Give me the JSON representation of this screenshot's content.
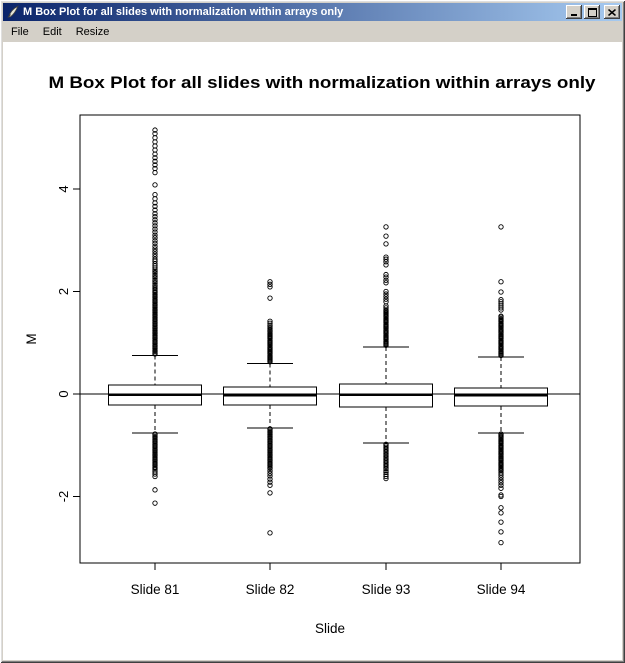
{
  "window": {
    "title": "M Box Plot for all slides with normalization within arrays only",
    "icons": {
      "titlebar": "quill-icon",
      "minimize": "minimize-icon",
      "maximize": "maximize-icon",
      "close": "close-icon"
    },
    "menu": [
      "File",
      "Edit",
      "Resize"
    ]
  },
  "colors": {
    "titlebar_gradient_left": "#0a246a",
    "titlebar_gradient_right": "#a6caf0",
    "window_chrome": "#d4d0c8",
    "plot_foreground": "#000000",
    "plot_background": "#ffffff"
  },
  "chart_data": {
    "type": "boxplot",
    "title": "M Box Plot for all slides with normalization within arrays only",
    "xlabel": "Slide",
    "ylabel": "M",
    "ylim": [
      -3.3,
      5.45
    ],
    "yticks": [
      -2,
      0,
      2,
      4
    ],
    "reference_line_y": 0,
    "grid": false,
    "legend": false,
    "categories": [
      "Slide 81",
      "Slide 82",
      "Slide 93",
      "Slide 94"
    ],
    "series": [
      {
        "name": "Slide 81",
        "q1": -0.21,
        "median": -0.02,
        "q3": 0.18,
        "whisker_low": -0.76,
        "whisker_high": 0.75,
        "outliers_high": [
          0.78,
          0.8,
          0.83,
          0.85,
          0.88,
          0.9,
          0.93,
          0.95,
          0.98,
          1.0,
          1.03,
          1.05,
          1.08,
          1.1,
          1.13,
          1.15,
          1.18,
          1.2,
          1.23,
          1.25,
          1.28,
          1.3,
          1.33,
          1.35,
          1.38,
          1.4,
          1.43,
          1.45,
          1.48,
          1.5,
          1.53,
          1.55,
          1.58,
          1.6,
          1.63,
          1.65,
          1.68,
          1.7,
          1.73,
          1.75,
          1.78,
          1.8,
          1.83,
          1.85,
          1.88,
          1.9,
          1.93,
          1.95,
          1.98,
          2.0,
          2.03,
          2.06,
          2.09,
          2.12,
          2.16,
          2.19,
          2.22,
          2.26,
          2.29,
          2.32,
          2.36,
          2.39,
          2.42,
          2.46,
          2.5,
          2.54,
          2.59,
          2.63,
          2.68,
          2.73,
          2.78,
          2.83,
          2.88,
          2.94,
          2.99,
          3.05,
          3.1,
          3.16,
          3.22,
          3.28,
          3.34,
          3.4,
          3.46,
          3.52,
          3.59,
          3.66,
          3.73,
          3.81,
          3.89,
          4.08,
          4.32,
          4.4,
          4.47,
          4.54,
          4.61,
          4.68,
          4.76,
          4.84,
          4.92,
          5.0,
          5.08,
          5.15
        ],
        "outliers_low": [
          -0.78,
          -0.8,
          -0.83,
          -0.85,
          -0.88,
          -0.9,
          -0.93,
          -0.95,
          -0.98,
          -1.0,
          -1.03,
          -1.05,
          -1.08,
          -1.1,
          -1.13,
          -1.15,
          -1.18,
          -1.2,
          -1.23,
          -1.25,
          -1.28,
          -1.3,
          -1.33,
          -1.35,
          -1.38,
          -1.4,
          -1.43,
          -1.45,
          -1.48,
          -1.52,
          -1.56,
          -1.61,
          -1.87,
          -2.13
        ]
      },
      {
        "name": "Slide 82",
        "q1": -0.21,
        "median": -0.03,
        "q3": 0.14,
        "whisker_low": -0.66,
        "whisker_high": 0.6,
        "outliers_high": [
          0.63,
          0.65,
          0.67,
          0.69,
          0.71,
          0.73,
          0.75,
          0.78,
          0.8,
          0.82,
          0.84,
          0.86,
          0.88,
          0.9,
          0.92,
          0.95,
          0.97,
          0.99,
          1.01,
          1.03,
          1.05,
          1.08,
          1.1,
          1.12,
          1.14,
          1.16,
          1.18,
          1.21,
          1.23,
          1.25,
          1.28,
          1.31,
          1.34,
          1.38,
          1.42,
          1.87,
          2.09,
          2.14,
          2.19
        ],
        "outliers_low": [
          -0.68,
          -0.7,
          -0.73,
          -0.75,
          -0.78,
          -0.8,
          -0.83,
          -0.85,
          -0.88,
          -0.9,
          -0.93,
          -0.95,
          -0.98,
          -1.0,
          -1.03,
          -1.05,
          -1.08,
          -1.1,
          -1.13,
          -1.15,
          -1.18,
          -1.2,
          -1.23,
          -1.25,
          -1.28,
          -1.3,
          -1.33,
          -1.35,
          -1.38,
          -1.4,
          -1.43,
          -1.45,
          -1.5,
          -1.55,
          -1.6,
          -1.66,
          -1.72,
          -1.78,
          -1.93,
          -2.71
        ]
      },
      {
        "name": "Slide 93",
        "q1": -0.25,
        "median": -0.02,
        "q3": 0.2,
        "whisker_low": -0.96,
        "whisker_high": 0.92,
        "outliers_high": [
          0.95,
          0.97,
          0.99,
          1.01,
          1.03,
          1.06,
          1.08,
          1.1,
          1.12,
          1.14,
          1.17,
          1.19,
          1.21,
          1.23,
          1.25,
          1.28,
          1.3,
          1.32,
          1.34,
          1.36,
          1.39,
          1.41,
          1.43,
          1.45,
          1.47,
          1.5,
          1.52,
          1.54,
          1.56,
          1.58,
          1.6,
          1.62,
          1.64,
          1.68,
          1.72,
          1.8,
          1.85,
          1.9,
          1.95,
          2.0,
          2.17,
          2.22,
          2.28,
          2.33,
          2.52,
          2.58,
          2.63,
          2.67,
          2.93,
          3.08,
          3.26
        ],
        "outliers_low": [
          -0.98,
          -1.01,
          -1.04,
          -1.07,
          -1.1,
          -1.13,
          -1.16,
          -1.19,
          -1.22,
          -1.25,
          -1.28,
          -1.31,
          -1.34,
          -1.37,
          -1.4,
          -1.43,
          -1.46,
          -1.5,
          -1.53,
          -1.57,
          -1.61,
          -1.65
        ]
      },
      {
        "name": "Slide 94",
        "q1": -0.23,
        "median": -0.03,
        "q3": 0.12,
        "whisker_low": -0.76,
        "whisker_high": 0.72,
        "outliers_high": [
          0.75,
          0.77,
          0.79,
          0.81,
          0.83,
          0.86,
          0.88,
          0.9,
          0.92,
          0.94,
          0.97,
          0.99,
          1.01,
          1.03,
          1.05,
          1.08,
          1.1,
          1.12,
          1.14,
          1.16,
          1.19,
          1.21,
          1.23,
          1.25,
          1.27,
          1.3,
          1.32,
          1.34,
          1.36,
          1.38,
          1.41,
          1.43,
          1.45,
          1.47,
          1.5,
          1.52,
          1.64,
          1.68,
          1.72,
          1.76,
          1.8,
          1.84,
          1.99,
          2.19,
          3.26
        ],
        "outliers_low": [
          -0.78,
          -0.8,
          -0.82,
          -0.84,
          -0.86,
          -0.89,
          -0.91,
          -0.93,
          -0.95,
          -0.97,
          -1.0,
          -1.02,
          -1.04,
          -1.06,
          -1.08,
          -1.11,
          -1.13,
          -1.15,
          -1.17,
          -1.19,
          -1.22,
          -1.24,
          -1.26,
          -1.28,
          -1.3,
          -1.33,
          -1.35,
          -1.37,
          -1.39,
          -1.41,
          -1.44,
          -1.46,
          -1.48,
          -1.5,
          -1.54,
          -1.58,
          -1.63,
          -1.68,
          -1.73,
          -1.78,
          -1.84,
          -1.97,
          -2.0,
          -2.22,
          -2.32,
          -2.5,
          -2.69,
          -2.9
        ]
      }
    ]
  }
}
